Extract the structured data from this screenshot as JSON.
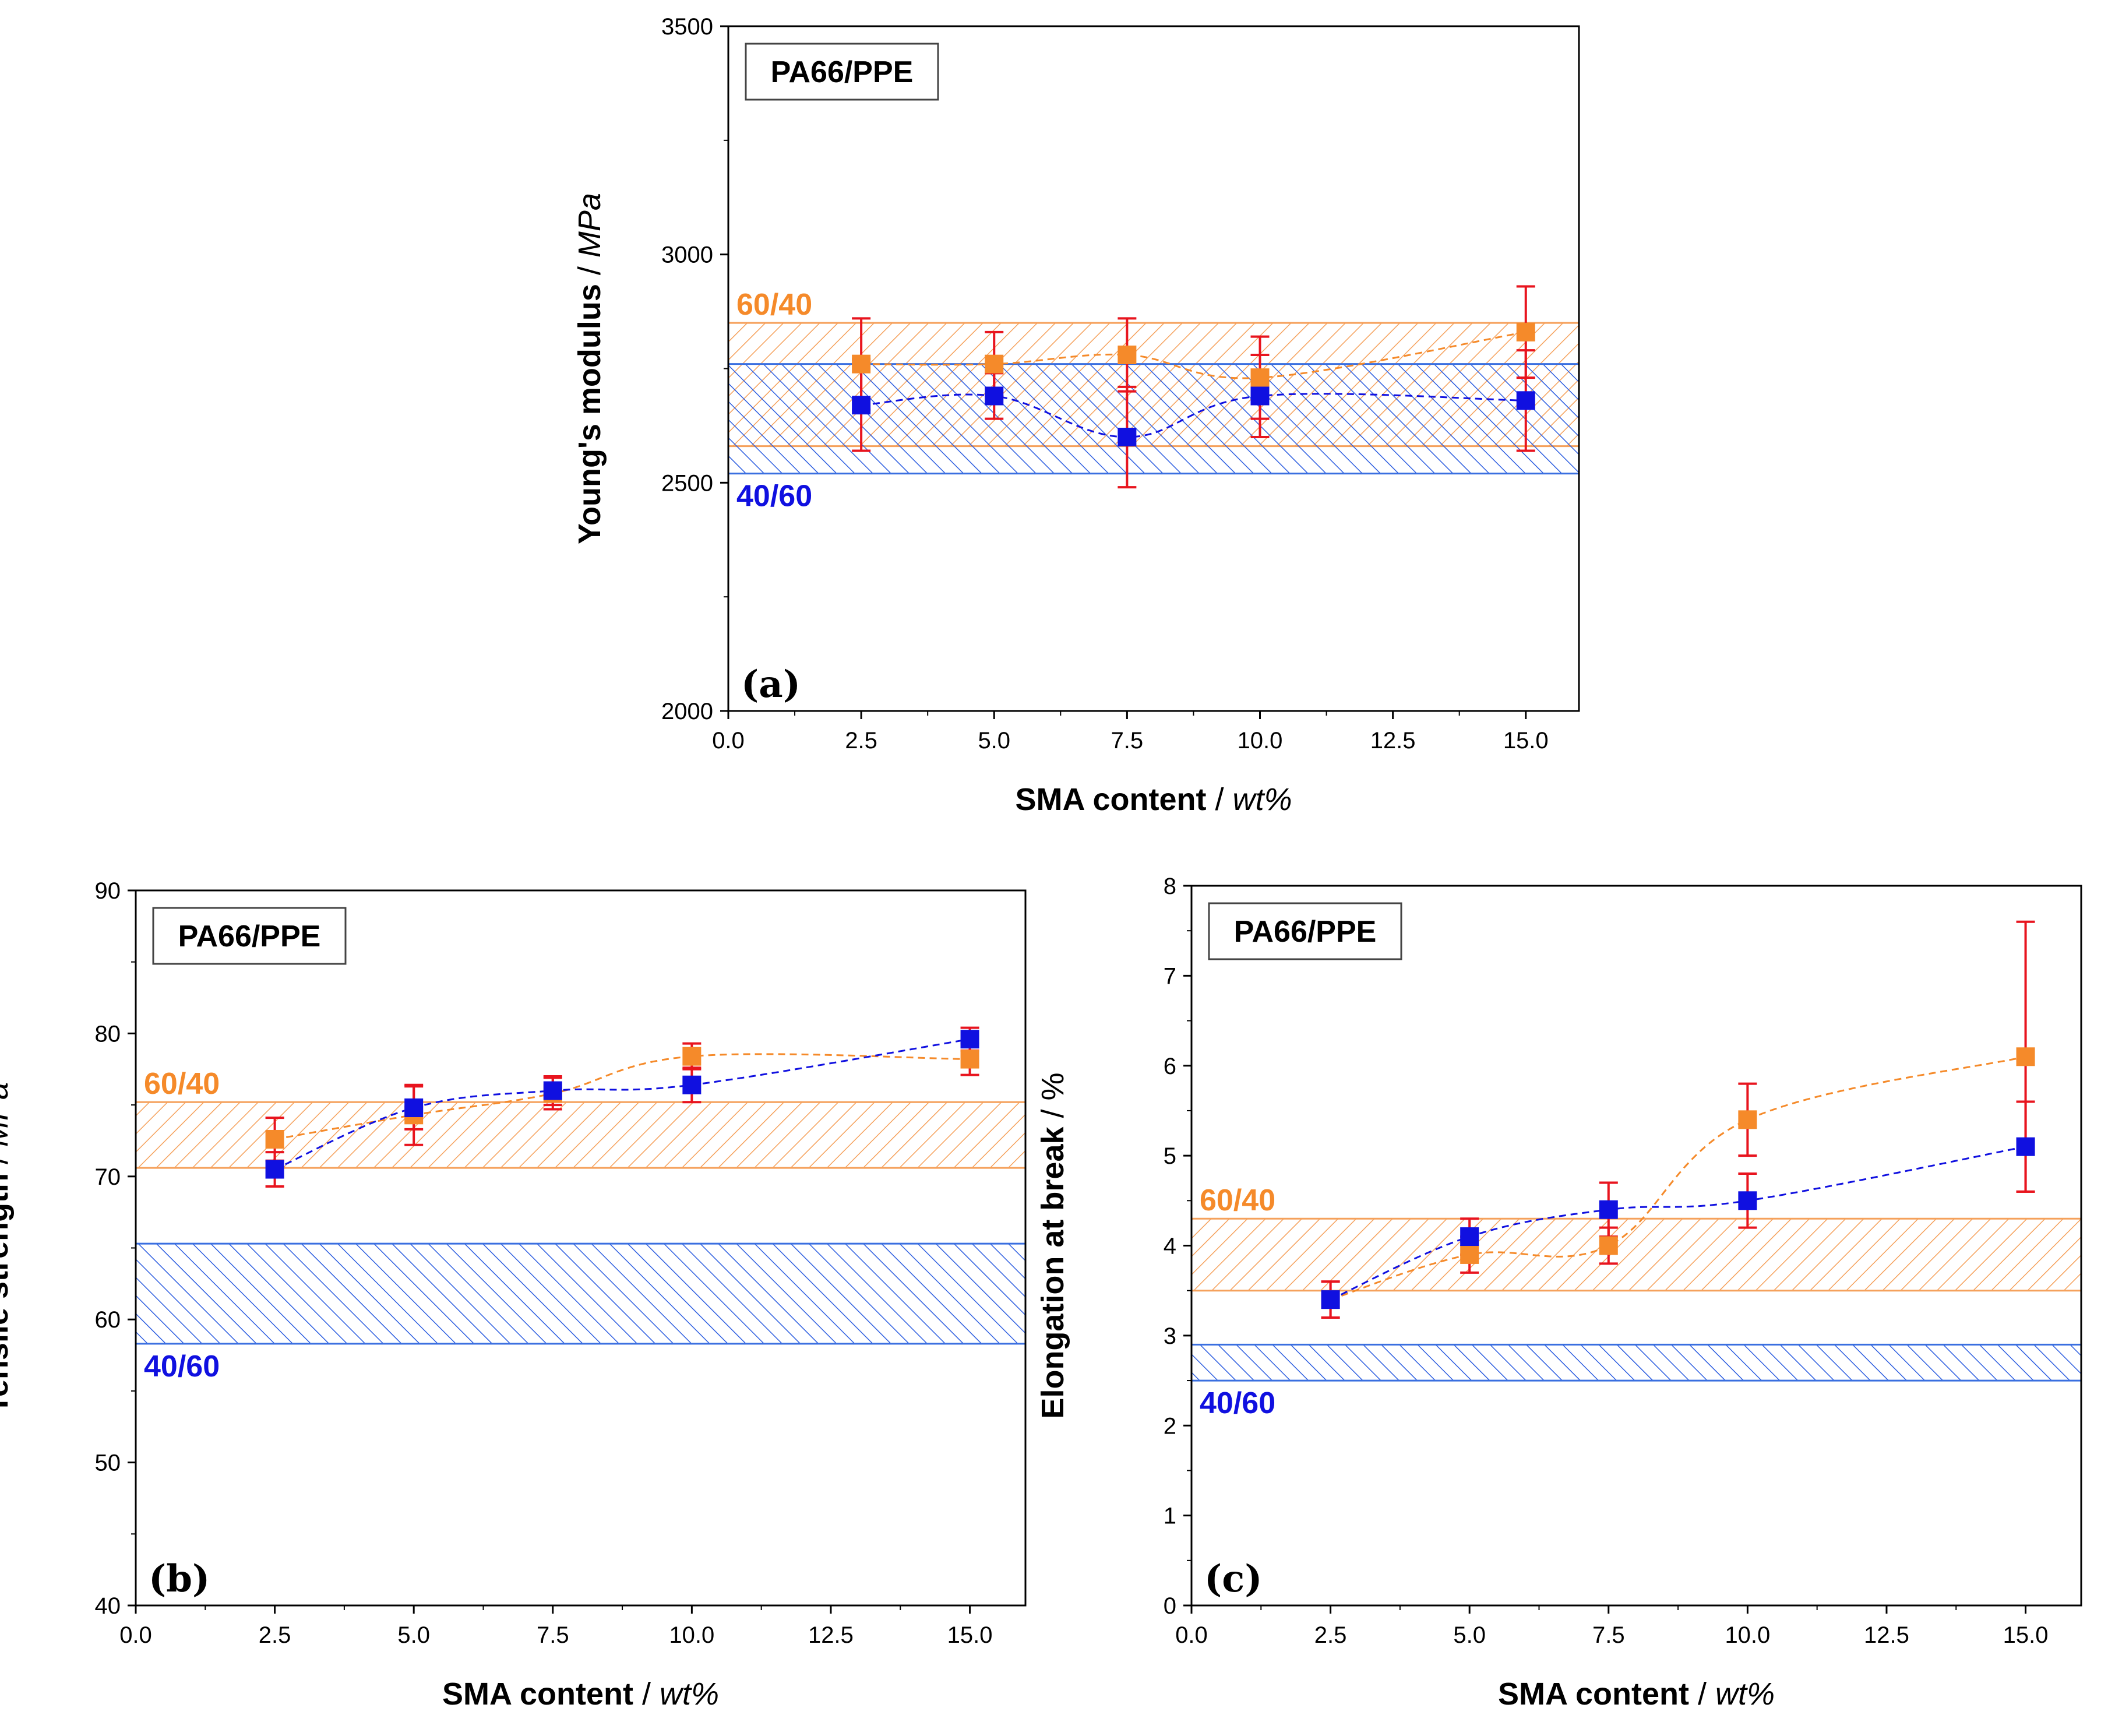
{
  "colors": {
    "ratio_60_40": "#F58A2A",
    "ratio_40_60": "#1010E0",
    "band_60_40_line": "#F5A15C",
    "band_40_60_line": "#3A6FE0",
    "error_bar": "#E8141E",
    "axis": "#000000"
  },
  "chart_data": [
    {
      "id": "a",
      "type": "scatter",
      "panel_label": "(a)",
      "badge": "PA66/PPE",
      "xlabel": "SMA content",
      "xunit": "wt%",
      "ylabel": "Young's modulus",
      "yunit": "MPa",
      "xlim": [
        0,
        16
      ],
      "ylim": [
        2000,
        3500
      ],
      "xticks": [
        "0.0",
        "2.5",
        "5.0",
        "7.5",
        "10.0",
        "12.5",
        "15.0"
      ],
      "yticks": [
        "2000",
        "2500",
        "3000",
        "3500"
      ],
      "bands": [
        {
          "name": "60/40",
          "range": [
            2580,
            2850
          ],
          "color_key": "band_60_40_line"
        },
        {
          "name": "40/60",
          "range": [
            2520,
            2760
          ],
          "color_key": "band_40_60_line"
        }
      ],
      "series": [
        {
          "name": "60/40",
          "color_key": "ratio_60_40",
          "x": [
            2.5,
            5.0,
            7.5,
            10.0,
            15.0
          ],
          "y": [
            2760,
            2760,
            2780,
            2730,
            2830
          ],
          "err": [
            100,
            70,
            80,
            90,
            100
          ]
        },
        {
          "name": "40/60",
          "color_key": "ratio_40_60",
          "x": [
            2.5,
            5.0,
            7.5,
            10.0,
            15.0
          ],
          "y": [
            2670,
            2690,
            2600,
            2690,
            2680
          ],
          "err": [
            100,
            50,
            110,
            90,
            110
          ]
        }
      ]
    },
    {
      "id": "b",
      "type": "scatter",
      "panel_label": "(b)",
      "badge": "PA66/PPE",
      "xlabel": "SMA content",
      "xunit": "wt%",
      "ylabel": "Tensile strength",
      "yunit": "MPa",
      "xlim": [
        0,
        16
      ],
      "ylim": [
        40,
        90
      ],
      "xticks": [
        "0.0",
        "2.5",
        "5.0",
        "7.5",
        "10.0",
        "12.5",
        "15.0"
      ],
      "yticks": [
        "40",
        "50",
        "60",
        "70",
        "80",
        "90"
      ],
      "bands": [
        {
          "name": "60/40",
          "range": [
            70.6,
            75.2
          ],
          "color_key": "band_60_40_line"
        },
        {
          "name": "40/60",
          "range": [
            58.3,
            65.3
          ],
          "color_key": "band_40_60_line"
        }
      ],
      "series": [
        {
          "name": "60/40",
          "color_key": "ratio_60_40",
          "x": [
            2.5,
            5.0,
            7.5,
            10.0,
            15.0
          ],
          "y": [
            72.6,
            74.3,
            75.8,
            78.4,
            78.2
          ],
          "err": [
            1.5,
            2.1,
            1.1,
            0.9,
            1.1
          ]
        },
        {
          "name": "40/60",
          "color_key": "ratio_40_60",
          "x": [
            2.5,
            5.0,
            7.5,
            10.0,
            15.0
          ],
          "y": [
            70.5,
            74.8,
            76.0,
            76.4,
            79.6
          ],
          "err": [
            1.2,
            1.5,
            1.0,
            1.2,
            0.8
          ]
        }
      ]
    },
    {
      "id": "c",
      "type": "scatter",
      "panel_label": "(c)",
      "badge": "PA66/PPE",
      "xlabel": "SMA content",
      "xunit": "wt%",
      "ylabel": "Elongation at break",
      "yunit": "%",
      "xlim": [
        0,
        16
      ],
      "ylim": [
        0,
        8
      ],
      "xticks": [
        "0.0",
        "2.5",
        "5.0",
        "7.5",
        "10.0",
        "12.5",
        "15.0"
      ],
      "yticks": [
        "0",
        "1",
        "2",
        "3",
        "4",
        "5",
        "6",
        "7",
        "8"
      ],
      "bands": [
        {
          "name": "60/40",
          "range": [
            3.5,
            4.3
          ],
          "color_key": "band_60_40_line"
        },
        {
          "name": "40/60",
          "range": [
            2.5,
            2.9
          ],
          "color_key": "band_40_60_line"
        }
      ],
      "series": [
        {
          "name": "60/40",
          "color_key": "ratio_60_40",
          "x": [
            2.5,
            5.0,
            7.5,
            10.0,
            15.0
          ],
          "y": [
            3.4,
            3.9,
            4.0,
            5.4,
            6.1
          ],
          "err": [
            0.2,
            0.2,
            0.2,
            0.4,
            1.5
          ]
        },
        {
          "name": "40/60",
          "color_key": "ratio_40_60",
          "x": [
            2.5,
            5.0,
            7.5,
            10.0,
            15.0
          ],
          "y": [
            3.4,
            4.1,
            4.4,
            4.5,
            5.1
          ],
          "err": [
            0.2,
            0.2,
            0.3,
            0.3,
            0.5
          ]
        }
      ]
    }
  ]
}
